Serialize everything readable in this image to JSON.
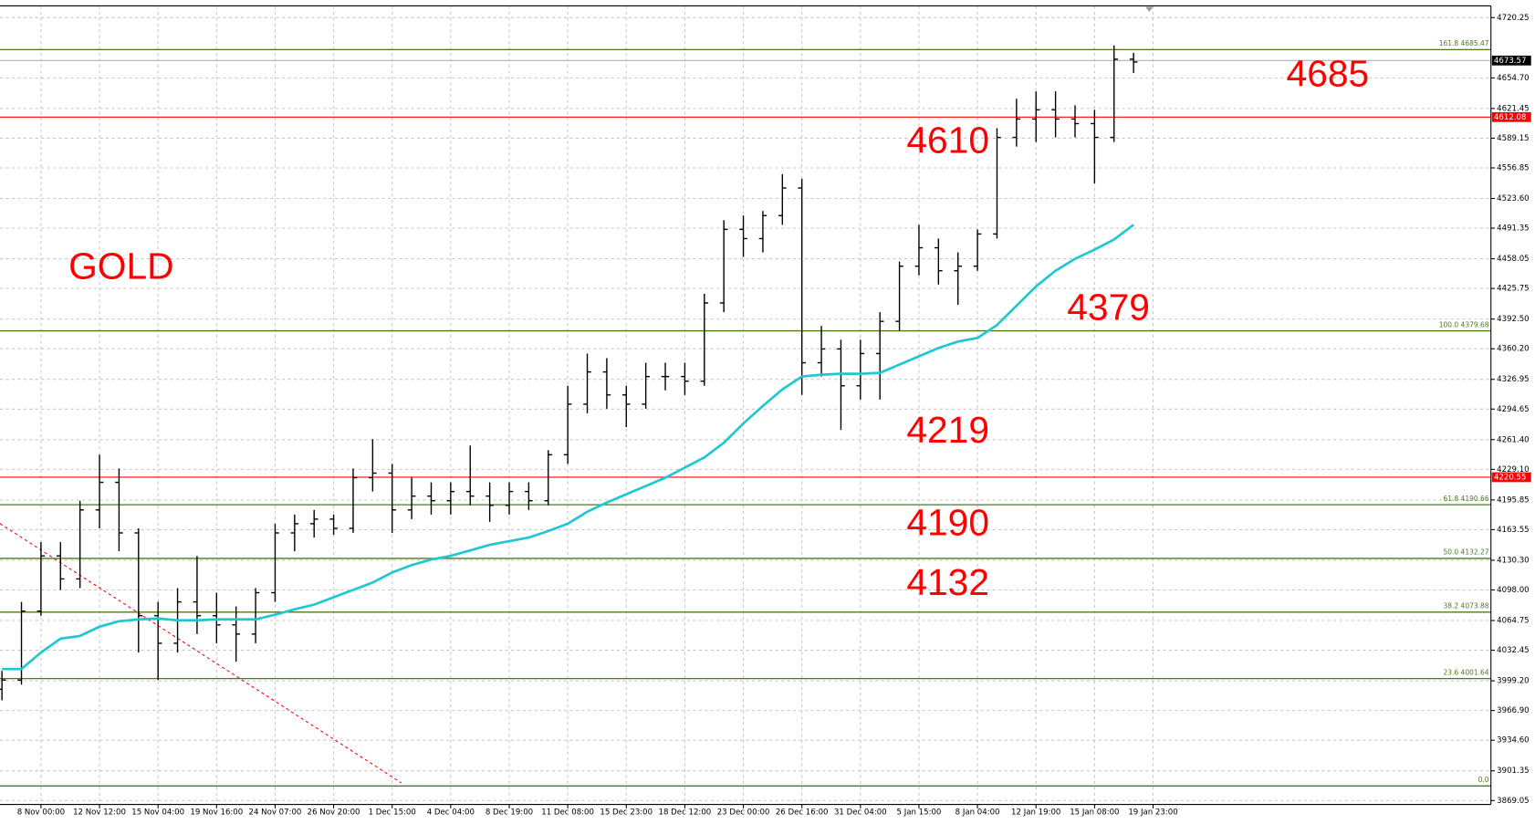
{
  "chart_data": {
    "type": "ohlc",
    "categories": [
      null,
      null,
      "8 Nov 00:00",
      null,
      null,
      "12 Nov 12:00",
      null,
      null,
      "15 Nov 04:00",
      null,
      null,
      "19 Nov 16:00",
      null,
      null,
      "24 Nov 07:00",
      null,
      null,
      "26 Nov 20:00",
      null,
      null,
      "1 Dec 15:00",
      null,
      null,
      "4 Dec 04:00",
      null,
      null,
      "8 Dec 19:00",
      null,
      null,
      "11 Dec 08:00",
      null,
      null,
      "15 Dec 23:00",
      null,
      null,
      "18 Dec 12:00",
      null,
      null,
      "23 Dec 00:00",
      null,
      null,
      "26 Dec 16:00",
      null,
      null,
      "31 Dec 04:00",
      null,
      null,
      "5 Jan 15:00",
      null,
      null,
      "8 Jan 04:00",
      null,
      null,
      "12 Jan 19:00",
      null,
      null,
      "15 Jan 08:00",
      null,
      null,
      "19 Jan 23:00"
    ],
    "open": [
      3990,
      4000,
      4075,
      4135,
      4110,
      4185,
      4215,
      4160,
      4070,
      4040,
      4085,
      4070,
      4060,
      4050,
      4095,
      4160,
      4170,
      4175,
      4165,
      4220,
      4225,
      4185,
      4200,
      4195,
      4205,
      4200,
      4190,
      4205,
      4195,
      4245,
      4300,
      4335,
      4310,
      4300,
      4330,
      4330,
      4325,
      4410,
      4490,
      4480,
      4505,
      4535,
      4345,
      4360,
      4320,
      4355,
      4390,
      4450,
      4470,
      4445,
      4450,
      4485,
      4590,
      4610,
      4620,
      4610,
      4605,
      4590,
      4675,
      null
    ],
    "high": [
      4010,
      4085,
      4150,
      4150,
      4195,
      4245,
      4230,
      4165,
      4085,
      4100,
      4135,
      4095,
      4080,
      4100,
      4170,
      4180,
      4185,
      4180,
      4230,
      4262,
      4235,
      4220,
      4215,
      4215,
      4255,
      4215,
      4215,
      4215,
      4250,
      4320,
      4355,
      4350,
      4320,
      4345,
      4345,
      4345,
      4420,
      4500,
      4505,
      4510,
      4550,
      4545,
      4385,
      4370,
      4370,
      4400,
      4455,
      4495,
      4480,
      4465,
      4490,
      4600,
      4632,
      4640,
      4640,
      4625,
      4620,
      4690,
      4682,
      null
    ],
    "low": [
      3978,
      3995,
      4070,
      4098,
      4100,
      4165,
      4140,
      4030,
      4000,
      4030,
      4050,
      4040,
      4020,
      4040,
      4085,
      4140,
      4155,
      4158,
      4160,
      4205,
      4160,
      4175,
      4180,
      4180,
      4190,
      4172,
      4180,
      4185,
      4190,
      4235,
      4290,
      4295,
      4275,
      4295,
      4315,
      4310,
      4320,
      4400,
      4460,
      4465,
      4495,
      4310,
      4330,
      4272,
      4305,
      4305,
      4380,
      4440,
      4430,
      4408,
      4445,
      4480,
      4580,
      4585,
      4590,
      4590,
      4540,
      4585,
      4660,
      null
    ],
    "close": [
      4000,
      4075,
      4135,
      4110,
      4185,
      4215,
      4160,
      4070,
      4040,
      4085,
      4070,
      4060,
      4050,
      4095,
      4160,
      4170,
      4175,
      4165,
      4220,
      4225,
      4185,
      4200,
      4195,
      4205,
      4200,
      4190,
      4205,
      4195,
      4245,
      4300,
      4335,
      4310,
      4300,
      4330,
      4330,
      4325,
      4410,
      4490,
      4480,
      4505,
      4535,
      4345,
      4360,
      4320,
      4355,
      4390,
      4450,
      4470,
      4445,
      4450,
      4485,
      4590,
      4610,
      4620,
      4610,
      4605,
      4590,
      4675,
      4672,
      null
    ],
    "bar_color": "#000000",
    "ma": {
      "color": "#1fc8d0",
      "values": [
        4012,
        4012,
        4030,
        4045,
        4048,
        4058,
        4064,
        4066,
        4067,
        4065,
        4065,
        4066,
        4066,
        4066,
        4071,
        4077,
        4082,
        4090,
        4098,
        4106,
        4117,
        4125,
        4131,
        4135,
        4141,
        4147,
        4151,
        4155,
        4162,
        4170,
        4183,
        4193,
        4202,
        4211,
        4220,
        4231,
        4242,
        4258,
        4279,
        4298,
        4316,
        4330,
        4332,
        4333,
        4333,
        4334,
        4343,
        4352,
        4361,
        4368,
        4372,
        4386,
        4407,
        4428,
        4445,
        4458,
        4468,
        4479,
        4495,
        null
      ]
    },
    "ylim": [
      3864.8,
      4733
    ],
    "yticks": [
      4720.25,
      {
        "value": 4654.7,
        "label": "4654.70"
      },
      4621.45,
      4589.15,
      4556.85,
      {
        "value": 4523.6,
        "label": "4523.60"
      },
      4491.35,
      4458.05,
      4425.75,
      {
        "value": 4392.5,
        "label": "4392.50"
      },
      {
        "value": 4360.2,
        "label": "4360.20"
      },
      4326.95,
      4294.65,
      {
        "value": 4261.4,
        "label": "4261.40"
      },
      {
        "value": 4229.1,
        "label": "4229.10"
      },
      4195.85,
      4163.55,
      {
        "value": 4130.3,
        "label": "4130.30"
      },
      {
        "value": 4098,
        "label": "4098.00"
      },
      4064.75,
      4032.45,
      {
        "value": 3999.2,
        "label": "3999.20"
      },
      {
        "value": 3966.9,
        "label": "3966.90"
      },
      {
        "value": 3934.6,
        "label": "3934.60"
      },
      3901.35,
      3869.05
    ],
    "grid": true,
    "fib_color": "#4b7a1e",
    "fib_levels": [
      {
        "label": "161.8 4685.47",
        "value": 4685.47
      },
      {
        "label": "100.0 4379.68",
        "value": 4379.68
      },
      {
        "label": "61.8 4190.66",
        "value": 4190.66
      },
      {
        "label": "50.0 4132.27",
        "value": 4132.27
      },
      {
        "label": "38.2 4073.88",
        "value": 4073.88
      },
      {
        "label": "23.6 4001.64",
        "value": 4001.64
      },
      {
        "label": "0.0",
        "value": 3884.88
      }
    ],
    "price_lines": [
      {
        "price": 4612.08,
        "color": "#ff0000"
      },
      {
        "price": 4220.55,
        "color": "#ff0000"
      }
    ],
    "current_price": {
      "price": 4673.57,
      "color": "#000000"
    },
    "annotation_color": "#ff0000",
    "annotations": [
      "GOLD",
      "4685",
      "4610",
      "4379",
      "4219",
      "4190",
      "4132"
    ]
  }
}
